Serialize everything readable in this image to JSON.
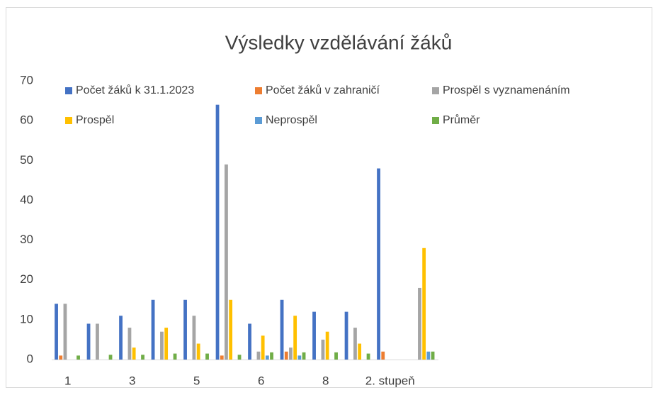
{
  "chart_data": {
    "type": "bar",
    "title": "Výsledky vzdělávání žáků",
    "categories": [
      "1",
      null,
      "3",
      null,
      "5",
      null,
      "6",
      null,
      "8",
      null,
      "2. stupeň",
      null
    ],
    "series": [
      {
        "name": "Počet žáků k 31.1.2023",
        "color": "#4472c4",
        "values": [
          14,
          9,
          11,
          15,
          15,
          64,
          9,
          15,
          12,
          12,
          48,
          0
        ]
      },
      {
        "name": "Počet žáků v zahraničí",
        "color": "#ed7d31",
        "values": [
          1,
          0,
          0,
          0,
          0,
          1,
          0,
          2,
          0,
          0,
          2,
          0
        ]
      },
      {
        "name": "Prospěl s vyznamenáním",
        "color": "#a5a5a5",
        "values": [
          14,
          9,
          8,
          7,
          11,
          49,
          2,
          3,
          5,
          8,
          0,
          18
        ]
      },
      {
        "name": "Prospěl",
        "color": "#ffc000",
        "values": [
          0,
          0,
          3,
          8,
          4,
          15,
          6,
          11,
          7,
          4,
          0,
          28
        ]
      },
      {
        "name": "Neprospěl",
        "color": "#5b9bd5",
        "values": [
          0,
          0,
          0,
          0,
          0,
          0,
          1,
          1,
          0,
          0,
          0,
          2
        ]
      },
      {
        "name": "Průměr",
        "color": "#70ad47",
        "values": [
          1,
          1.2,
          1.2,
          1.5,
          1.5,
          1.2,
          1.8,
          1.8,
          1.8,
          1.5,
          0,
          2
        ]
      }
    ],
    "ylim": [
      0,
      70
    ],
    "yticks": [
      0,
      10,
      20,
      30,
      40,
      50,
      60,
      70
    ],
    "grid": false,
    "legend": "top"
  }
}
